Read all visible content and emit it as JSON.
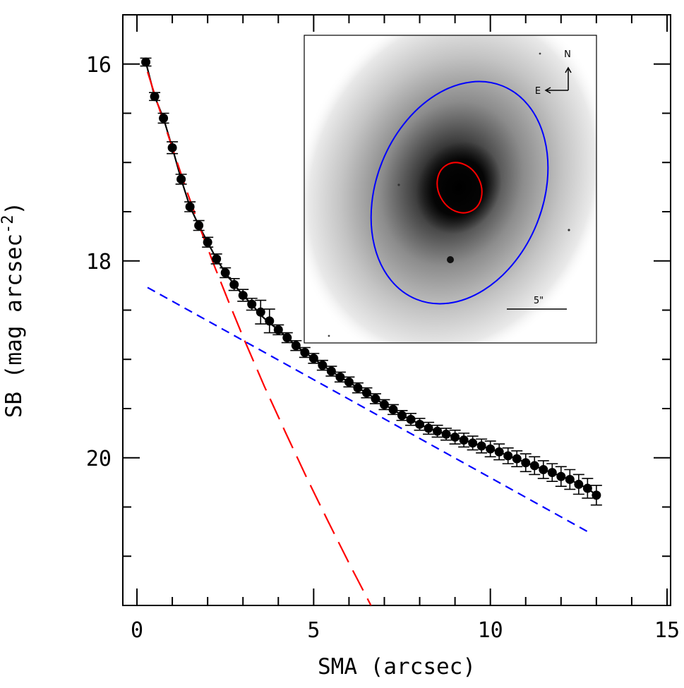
{
  "chart_data": {
    "type": "scatter",
    "xlabel": "SMA (arcsec)",
    "ylabel": "SB (mag arcsec^-2)",
    "xlim": [
      -0.4,
      15.1
    ],
    "ylim": [
      21.5,
      15.5
    ],
    "y_inverted": true,
    "xticks": [
      0,
      5,
      10,
      15
    ],
    "yticks": [
      16,
      18,
      20
    ],
    "xtick_labels": [
      "0",
      "5",
      "10",
      "15"
    ],
    "ytick_labels": [
      "16",
      "18",
      "20"
    ],
    "x_minor_step": 1,
    "y_minor_step": 0.5,
    "grid": false,
    "series": [
      {
        "style": "points-with-errorbars",
        "color": "#000000",
        "x": [
          0.25,
          0.5,
          0.75,
          1.0,
          1.25,
          1.5,
          1.75,
          2.0,
          2.25,
          2.5,
          2.75,
          3.0,
          3.25,
          3.5,
          3.75,
          4.0,
          4.25,
          4.5,
          4.75,
          5.0,
          5.25,
          5.5,
          5.75,
          6.0,
          6.25,
          6.5,
          6.75,
          7.0,
          7.25,
          7.5,
          7.75,
          8.0,
          8.25,
          8.5,
          8.75,
          9.0,
          9.25,
          9.5,
          9.75,
          10.0,
          10.25,
          10.5,
          10.75,
          11.0,
          11.25,
          11.5,
          11.75,
          12.0,
          12.25,
          12.5,
          12.75,
          13.0
        ],
        "y": [
          15.98,
          16.33,
          16.55,
          16.85,
          17.17,
          17.45,
          17.64,
          17.81,
          17.98,
          18.12,
          18.24,
          18.35,
          18.44,
          18.52,
          18.61,
          18.7,
          18.78,
          18.86,
          18.93,
          18.99,
          19.06,
          19.12,
          19.18,
          19.23,
          19.29,
          19.34,
          19.4,
          19.46,
          19.51,
          19.57,
          19.61,
          19.66,
          19.7,
          19.73,
          19.76,
          19.79,
          19.82,
          19.85,
          19.88,
          19.91,
          19.94,
          19.98,
          20.01,
          20.05,
          20.08,
          20.12,
          20.15,
          20.19,
          20.22,
          20.27,
          20.31,
          20.38
        ],
        "yerr": [
          0.04,
          0.04,
          0.05,
          0.06,
          0.05,
          0.05,
          0.05,
          0.05,
          0.05,
          0.05,
          0.06,
          0.06,
          0.06,
          0.12,
          0.12,
          0.05,
          0.05,
          0.05,
          0.05,
          0.05,
          0.05,
          0.05,
          0.05,
          0.05,
          0.05,
          0.05,
          0.05,
          0.05,
          0.05,
          0.05,
          0.06,
          0.06,
          0.06,
          0.06,
          0.06,
          0.07,
          0.07,
          0.07,
          0.07,
          0.08,
          0.08,
          0.08,
          0.08,
          0.09,
          0.09,
          0.09,
          0.09,
          0.1,
          0.1,
          0.1,
          0.1,
          0.1
        ]
      },
      {
        "style": "solid-line",
        "color": "#000000",
        "x": [
          0.25,
          0.5,
          0.75,
          1.0,
          1.25,
          1.5,
          1.75,
          2.0,
          2.25,
          2.5,
          2.75,
          3.0,
          3.25,
          3.5,
          3.75,
          4.0,
          4.25,
          4.5,
          4.75,
          5.0,
          5.25,
          5.5,
          5.75,
          6.0,
          6.25,
          6.5,
          6.75,
          7.0,
          7.25,
          7.5,
          7.75,
          8.0,
          8.25,
          8.5,
          8.75,
          9.0,
          9.25,
          9.5,
          9.75,
          10.0,
          10.25,
          10.5,
          10.75,
          11.0,
          11.25,
          11.5,
          11.75,
          12.0,
          12.25,
          12.5,
          12.75,
          13.0
        ],
        "y": [
          15.98,
          16.33,
          16.55,
          16.85,
          17.17,
          17.45,
          17.64,
          17.81,
          17.98,
          18.12,
          18.24,
          18.35,
          18.44,
          18.55,
          18.63,
          18.7,
          18.78,
          18.86,
          18.93,
          18.99,
          19.06,
          19.12,
          19.18,
          19.23,
          19.29,
          19.34,
          19.4,
          19.46,
          19.51,
          19.57,
          19.61,
          19.66,
          19.7,
          19.73,
          19.76,
          19.79,
          19.82,
          19.85,
          19.88,
          19.91,
          19.94,
          19.98,
          20.01,
          20.05,
          20.08,
          20.12,
          20.15,
          20.19,
          20.22,
          20.27,
          20.31,
          20.38
        ]
      },
      {
        "style": "long-dash",
        "color": "#ff0000",
        "x": [
          0.3,
          0.6,
          1.0,
          1.4,
          1.8,
          2.2,
          2.6,
          3.0,
          3.6,
          4.2,
          4.8,
          5.4,
          6.0,
          6.65
        ],
        "y": [
          16.08,
          16.42,
          16.85,
          17.28,
          17.68,
          18.06,
          18.42,
          18.77,
          19.27,
          19.74,
          20.2,
          20.64,
          21.07,
          21.52
        ]
      },
      {
        "style": "short-dash",
        "color": "#0000ff",
        "x": [
          0.3,
          12.8
        ],
        "y": [
          18.27,
          20.76
        ]
      }
    ],
    "inset": {
      "compass_north": "N",
      "compass_east": "E",
      "scale_bar_label": "5\"",
      "ellipse_colors": [
        "#ff0000",
        "#0000ff"
      ]
    }
  }
}
